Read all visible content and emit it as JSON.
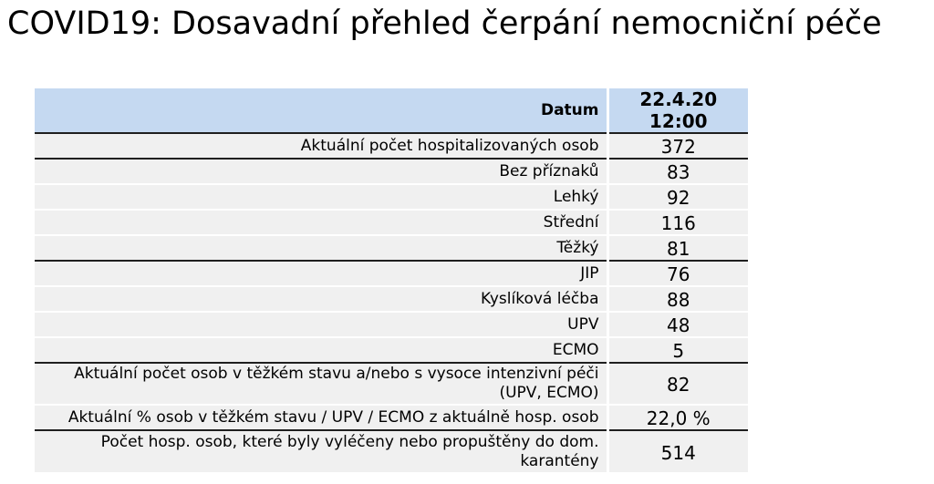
{
  "page": {
    "title": "COVID19: Dosavadní přehled čerpání nemocniční péče"
  },
  "colors": {
    "header_bg": "#c5d9f1",
    "row_bg": "#f0f0f0",
    "divider_dark": "#1f1f1f"
  },
  "table": {
    "header": {
      "label": "Datum",
      "value": "22.4.20 12:00"
    },
    "rows": [
      {
        "label": "Aktuální počet hospitalizovaných osob",
        "value": "372"
      },
      {
        "label": "Bez příznaků",
        "value": "83"
      },
      {
        "label": "Lehký",
        "value": "92"
      },
      {
        "label": "Střední",
        "value": "116"
      },
      {
        "label": "Těžký",
        "value": "81"
      },
      {
        "label": "JIP",
        "value": "76"
      },
      {
        "label": "Kyslíková léčba",
        "value": "88"
      },
      {
        "label": "UPV",
        "value": "48"
      },
      {
        "label": "ECMO",
        "value": "5"
      },
      {
        "label": "Aktuální počet osob v těžkém stavu a/nebo s vysoce intenzivní péči\n(UPV, ECMO)",
        "value": "82"
      },
      {
        "label": "Aktuální % osob v těžkém stavu / UPV / ECMO z aktuálně hosp. osob",
        "value": "22,0 %"
      },
      {
        "label": "Počet hosp. osob, které byly vyléčeny nebo propuštěny do dom.\nkarantény",
        "value": "514"
      }
    ]
  }
}
